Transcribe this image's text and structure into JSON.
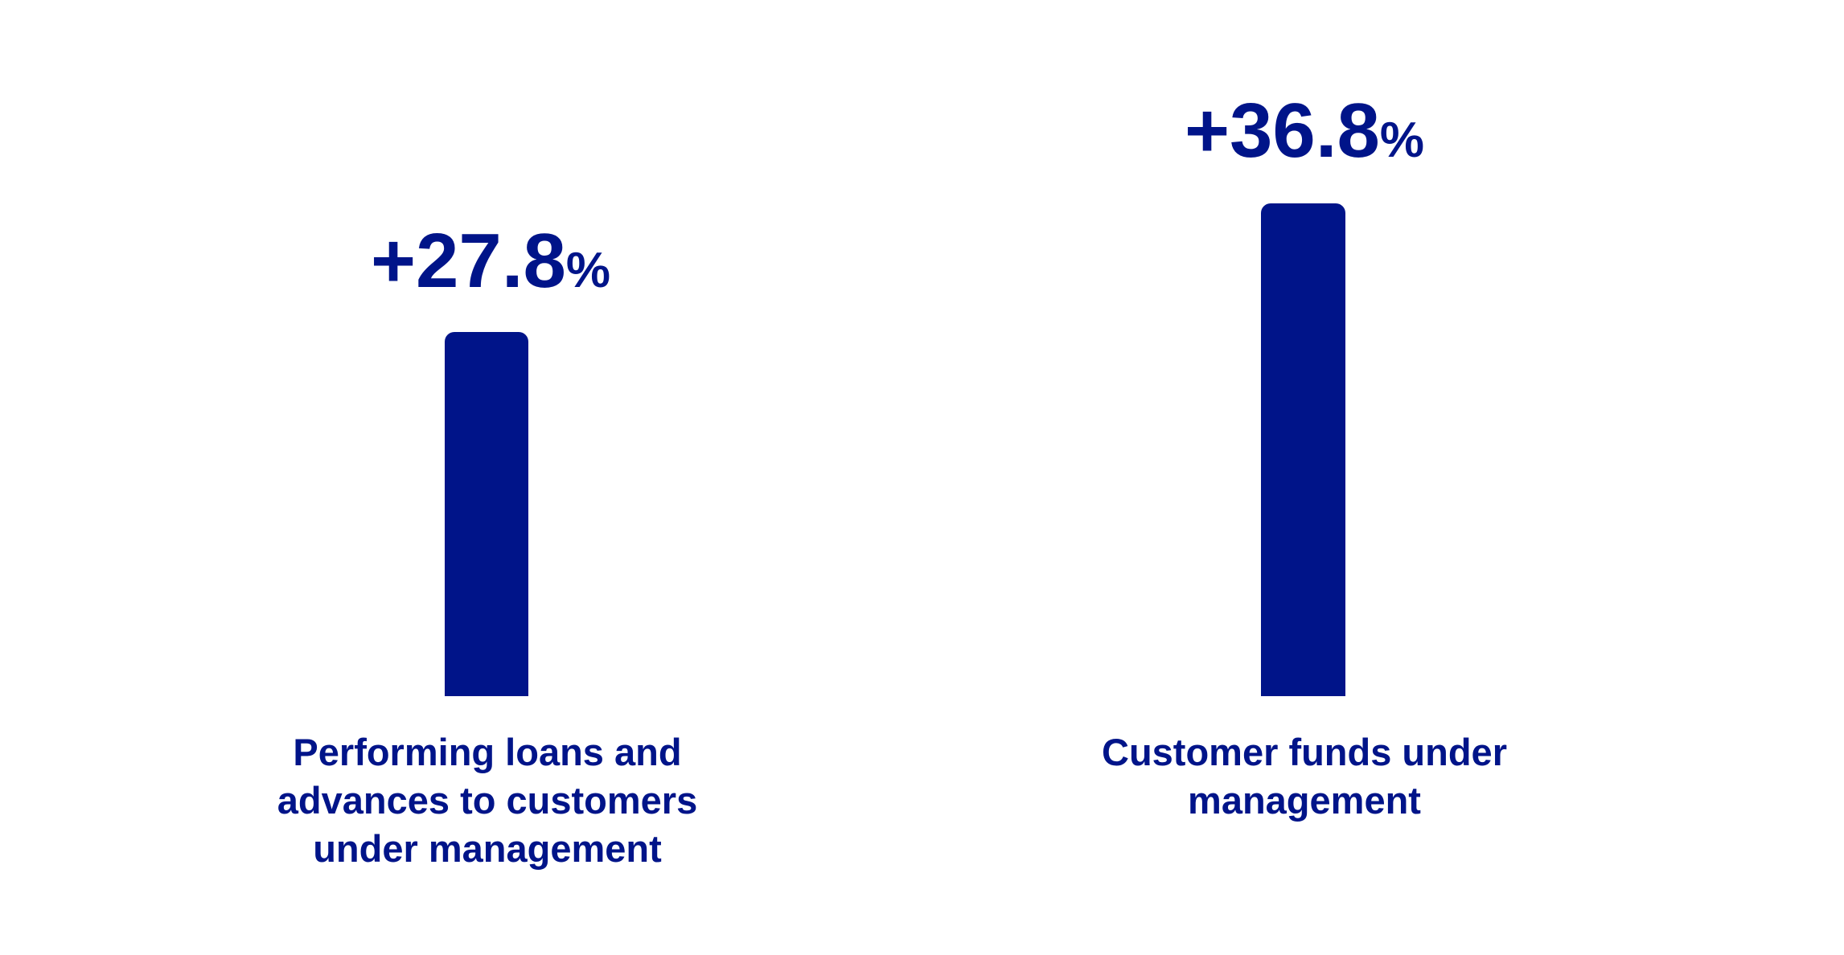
{
  "chart_data": {
    "type": "bar",
    "categories": [
      "Performing loans and advances to customers under management",
      "Customer funds under management"
    ],
    "values": [
      27.8,
      36.8
    ],
    "value_labels": [
      "+27.8%",
      "+36.8%"
    ],
    "unit": "percent growth",
    "title": "",
    "xlabel": "",
    "ylabel": "",
    "legend": "none",
    "grid": false,
    "axes_visible": false,
    "bar_color": "#001489",
    "text_color": "#001489",
    "background_color": "#ffffff"
  },
  "bars": [
    {
      "value_label": "+27.8",
      "percent_sign": "%",
      "label_lines": {
        "0": "Performing loans and",
        "1": "advances to customers",
        "2": "under management"
      }
    },
    {
      "value_label": "+36.8",
      "percent_sign": "%",
      "label_lines": {
        "0": "Customer funds under",
        "1": "management"
      }
    }
  ]
}
